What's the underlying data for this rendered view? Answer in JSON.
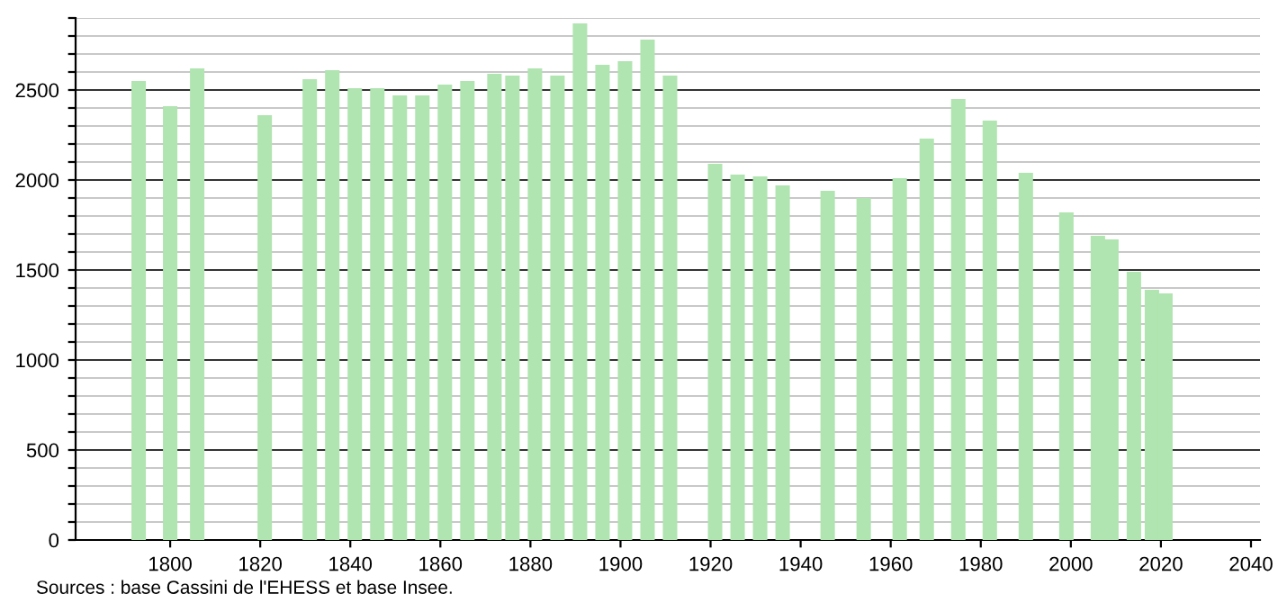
{
  "chart_data": {
    "type": "bar",
    "color": "#b0e4b0",
    "x": [
      1793,
      1800,
      1806,
      1821,
      1831,
      1836,
      1841,
      1846,
      1851,
      1856,
      1861,
      1866,
      1872,
      1876,
      1881,
      1886,
      1891,
      1896,
      1901,
      1906,
      1911,
      1921,
      1926,
      1931,
      1936,
      1946,
      1954,
      1962,
      1968,
      1975,
      1982,
      1990,
      1999,
      2006,
      2009,
      2014,
      2018,
      2021
    ],
    "values": [
      2550,
      2410,
      2620,
      2360,
      2560,
      2610,
      2510,
      2510,
      2470,
      2470,
      2530,
      2550,
      2590,
      2580,
      2620,
      2580,
      2870,
      2640,
      2660,
      2780,
      2580,
      2090,
      2030,
      2020,
      1970,
      1940,
      1900,
      2010,
      2230,
      2450,
      2330,
      2040,
      1820,
      1690,
      1670,
      1490,
      1390,
      1370
    ],
    "xlim": [
      1779,
      2042
    ],
    "xticks": [
      1800,
      1820,
      1840,
      1860,
      1880,
      1900,
      1920,
      1940,
      1960,
      1980,
      2000,
      2020,
      2040
    ],
    "ylim": [
      0,
      2900
    ],
    "yticks": [
      0,
      {
        "value": 100,
        "label": null
      },
      {
        "value": 200,
        "label": null
      },
      {
        "value": 300,
        "label": null
      },
      {
        "value": 400,
        "label": null
      },
      500,
      {
        "value": 600,
        "label": null
      },
      {
        "value": 700,
        "label": null
      },
      {
        "value": 800,
        "label": null
      },
      {
        "value": 900,
        "label": null
      },
      1000,
      {
        "value": 1100,
        "label": null
      },
      {
        "value": 1200,
        "label": null
      },
      {
        "value": 1300,
        "label": null
      },
      {
        "value": 1400,
        "label": null
      },
      1500,
      {
        "value": 1600,
        "label": null
      },
      {
        "value": 1700,
        "label": null
      },
      {
        "value": 1800,
        "label": null
      },
      {
        "value": 1900,
        "label": null
      },
      2000,
      {
        "value": 2100,
        "label": null
      },
      {
        "value": 2200,
        "label": null
      },
      {
        "value": 2300,
        "label": null
      },
      {
        "value": 2400,
        "label": null
      },
      2500,
      {
        "value": 2600,
        "label": null
      },
      {
        "value": 2700,
        "label": null
      },
      {
        "value": 2800,
        "label": null
      },
      {
        "value": 2900,
        "label": null
      }
    ],
    "grid": "y",
    "annotations": [
      "Sources : base Cassini de l'EHESS et base Insee."
    ]
  }
}
